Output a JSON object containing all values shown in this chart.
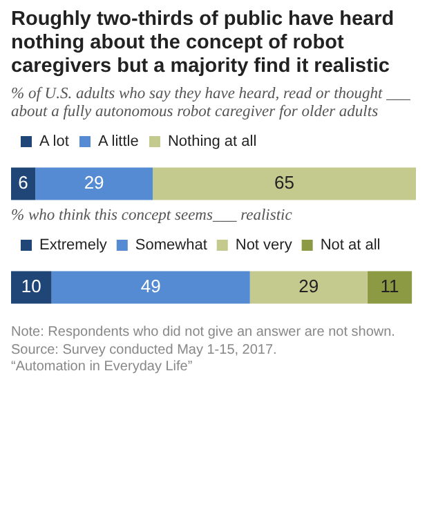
{
  "chart_data": [
    {
      "type": "bar",
      "orientation": "horizontal",
      "stacked": true,
      "title": "Roughly two-thirds of public have heard nothing about the concept of robot caregivers but a majority find it realistic",
      "subtitle": "% of U.S. adults who say they have heard, read or thought ___ about a fully autonomous robot caregiver for older adults",
      "categories": [
        null
      ],
      "series": [
        {
          "name": "A lot",
          "color": "#1f4677",
          "values": [
            6
          ]
        },
        {
          "name": "A little",
          "color": "#548bd3",
          "values": [
            29
          ]
        },
        {
          "name": "Nothing at all",
          "color": "#c4ca8e",
          "values": [
            65
          ]
        }
      ],
      "data_labels": true,
      "legend": "top",
      "tick_labels": false
    },
    {
      "type": "bar",
      "orientation": "horizontal",
      "stacked": true,
      "subtitle": "% who think this concept seems___ realistic",
      "categories": [
        null
      ],
      "series": [
        {
          "name": "Extremely",
          "color": "#1f4677",
          "values": [
            10
          ]
        },
        {
          "name": "Somewhat",
          "color": "#548bd3",
          "values": [
            49
          ]
        },
        {
          "name": "Not very",
          "color": "#c4ca8e",
          "values": [
            29
          ]
        },
        {
          "name": "Not at all",
          "color": "#8c9a44",
          "values": [
            11
          ]
        }
      ],
      "data_labels": true,
      "legend": "top",
      "tick_labels": false,
      "annotations": [
        "Note: Respondents who did not give an answer are not shown.",
        "Source: Survey conducted May 1-15, 2017.",
        "“Automation in Everyday Life”"
      ]
    }
  ]
}
